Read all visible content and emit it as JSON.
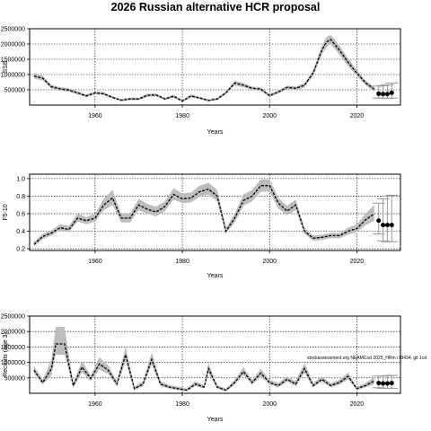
{
  "chart_data": {
    "title": "2026 Russian alternative HCR proposal",
    "annotation": "stockassessment.org NEAMCod 2025_HRm r19434, git 1cd",
    "panels": [
      {
        "type": "line",
        "ylabel": "SSB",
        "xlabel": "Years",
        "xlim": [
          1945,
          2030
        ],
        "ylim": [
          0,
          2500000
        ],
        "yticks": [
          500000,
          1000000,
          1500000,
          2000000,
          2500000
        ],
        "ytick_labels": [
          "500000",
          "1000000",
          "1500000",
          "2000000",
          "2500000"
        ],
        "xticks": [
          1960,
          1980,
          2000,
          2020
        ],
        "grid": true,
        "series": [
          {
            "x": [
              1946,
              1948,
              1950,
              1952,
              1954,
              1956,
              1958,
              1960,
              1962,
              1964,
              1966,
              1968,
              1970,
              1972,
              1974,
              1976,
              1978,
              1980,
              1982,
              1984,
              1986,
              1988,
              1990,
              1992,
              1994,
              1996,
              1998,
              2000,
              2002,
              2004,
              2006,
              2008,
              2010,
              2012,
              2013,
              2014,
              2016,
              2018,
              2020,
              2022,
              2024
            ],
            "y": [
              950000,
              880000,
              600000,
              530000,
              490000,
              400000,
              300000,
              400000,
              370000,
              250000,
              160000,
              200000,
              200000,
              320000,
              330000,
              200000,
              290000,
              130000,
              300000,
              230000,
              150000,
              200000,
              400000,
              720000,
              650000,
              550000,
              520000,
              310000,
              430000,
              580000,
              550000,
              650000,
              1050000,
              1800000,
              2060000,
              2150000,
              1800000,
              1400000,
              1050000,
              730000,
              520000
            ],
            "lower": [
              870000,
              800000,
              540000,
              470000,
              430000,
              350000,
              250000,
              350000,
              320000,
              210000,
              120000,
              160000,
              160000,
              270000,
              280000,
              160000,
              240000,
              100000,
              250000,
              190000,
              120000,
              160000,
              350000,
              640000,
              580000,
              490000,
              460000,
              270000,
              380000,
              520000,
              490000,
              580000,
              960000,
              1660000,
              1900000,
              2000000,
              1650000,
              1270000,
              950000,
              650000,
              440000
            ],
            "upper": [
              1050000,
              960000,
              660000,
              590000,
              550000,
              450000,
              350000,
              450000,
              420000,
              290000,
              200000,
              240000,
              240000,
              370000,
              380000,
              240000,
              340000,
              170000,
              350000,
              270000,
              190000,
              240000,
              450000,
              800000,
              720000,
              610000,
              580000,
              360000,
              480000,
              640000,
              610000,
              720000,
              1150000,
              1950000,
              2220000,
              2300000,
              1950000,
              1530000,
              1150000,
              810000,
              600000
            ]
          }
        ],
        "projection": {
          "x": [
            2025,
            2026,
            2027,
            2028
          ],
          "y": [
            370000,
            360000,
            360000,
            400000
          ],
          "lower": [
            230000,
            220000,
            220000,
            230000
          ],
          "upper": [
            620000,
            640000,
            660000,
            720000
          ]
        }
      },
      {
        "type": "line",
        "ylabel": "F5-10",
        "xlabel": "Years",
        "xlim": [
          1945,
          2030
        ],
        "ylim": [
          0.18,
          1.05
        ],
        "yticks": [
          0.2,
          0.4,
          0.6,
          0.8,
          1.0
        ],
        "ytick_labels": [
          "0.2",
          "0.4",
          "0.6",
          "0.8",
          "1.0"
        ],
        "xticks": [
          1960,
          1980,
          2000,
          2020
        ],
        "grid": true,
        "series": [
          {
            "x": [
              1946,
              1948,
              1950,
              1952,
              1954,
              1956,
              1958,
              1960,
              1962,
              1964,
              1966,
              1968,
              1970,
              1972,
              1974,
              1976,
              1978,
              1980,
              1982,
              1984,
              1986,
              1988,
              1990,
              1992,
              1994,
              1996,
              1998,
              2000,
              2002,
              2004,
              2006,
              2008,
              2010,
              2012,
              2014,
              2016,
              2018,
              2020,
              2022,
              2024
            ],
            "y": [
              0.25,
              0.34,
              0.38,
              0.44,
              0.42,
              0.55,
              0.52,
              0.55,
              0.7,
              0.78,
              0.55,
              0.55,
              0.7,
              0.65,
              0.62,
              0.68,
              0.82,
              0.77,
              0.78,
              0.85,
              0.88,
              0.8,
              0.4,
              0.55,
              0.75,
              0.8,
              0.92,
              0.92,
              0.72,
              0.63,
              0.7,
              0.4,
              0.32,
              0.33,
              0.35,
              0.35,
              0.4,
              0.43,
              0.53,
              0.6
            ],
            "lower": [
              0.23,
              0.31,
              0.35,
              0.41,
              0.39,
              0.51,
              0.48,
              0.51,
              0.64,
              0.7,
              0.5,
              0.5,
              0.64,
              0.6,
              0.57,
              0.63,
              0.76,
              0.72,
              0.73,
              0.79,
              0.82,
              0.74,
              0.37,
              0.5,
              0.69,
              0.74,
              0.85,
              0.85,
              0.66,
              0.58,
              0.64,
              0.37,
              0.29,
              0.3,
              0.32,
              0.32,
              0.36,
              0.39,
              0.47,
              0.52
            ],
            "upper": [
              0.28,
              0.37,
              0.41,
              0.48,
              0.46,
              0.6,
              0.56,
              0.6,
              0.77,
              0.87,
              0.6,
              0.6,
              0.77,
              0.71,
              0.68,
              0.74,
              0.89,
              0.83,
              0.84,
              0.92,
              0.95,
              0.87,
              0.44,
              0.6,
              0.82,
              0.87,
              0.99,
              0.99,
              0.78,
              0.69,
              0.76,
              0.44,
              0.35,
              0.36,
              0.38,
              0.38,
              0.44,
              0.48,
              0.6,
              0.7
            ]
          }
        ],
        "projection": {
          "x": [
            2025,
            2026,
            2027,
            2028
          ],
          "y": [
            0.52,
            0.47,
            0.47,
            0.47
          ],
          "lower": [
            0.37,
            0.29,
            0.28,
            0.28
          ],
          "upper": [
            0.72,
            0.77,
            0.8,
            0.81
          ]
        }
      },
      {
        "type": "line",
        "ylabel": "Recruits (age 3)",
        "xlabel": "Years",
        "xlim": [
          1945,
          2030
        ],
        "ylim": [
          0,
          2500000
        ],
        "yticks": [
          500000,
          1000000,
          1500000,
          2000000,
          2500000
        ],
        "ytick_labels": [
          "500000",
          "1000000",
          "1500000",
          "2000000",
          "2500000"
        ],
        "xticks": [
          1960,
          1980,
          2000,
          2020
        ],
        "grid": true,
        "series": [
          {
            "x": [
              1946,
              1948,
              1950,
              1951,
              1953,
              1955,
              1957,
              1959,
              1961,
              1963,
              1965,
              1967,
              1969,
              1971,
              1973,
              1975,
              1977,
              1979,
              1981,
              1983,
              1985,
              1986,
              1988,
              1990,
              1992,
              1994,
              1996,
              1998,
              2000,
              2002,
              2004,
              2006,
              2008,
              2010,
              2012,
              2014,
              2016,
              2018,
              2020,
              2022,
              2024
            ],
            "y": [
              750000,
              350000,
              800000,
              1600000,
              1600000,
              250000,
              850000,
              480000,
              950000,
              750000,
              300000,
              1250000,
              150000,
              300000,
              1100000,
              300000,
              200000,
              150000,
              100000,
              300000,
              200000,
              800000,
              200000,
              100000,
              350000,
              700000,
              350000,
              650000,
              350000,
              250000,
              450000,
              300000,
              800000,
              250000,
              450000,
              250000,
              350000,
              550000,
              150000,
              250000,
              400000
            ],
            "lower": [
              640000,
              280000,
              580000,
              1250000,
              1250000,
              180000,
              680000,
              390000,
              770000,
              620000,
              220000,
              1030000,
              100000,
              230000,
              920000,
              230000,
              150000,
              100000,
              70000,
              230000,
              150000,
              660000,
              150000,
              70000,
              280000,
              590000,
              280000,
              540000,
              280000,
              190000,
              370000,
              230000,
              660000,
              190000,
              370000,
              190000,
              280000,
              450000,
              110000,
              190000,
              300000
            ],
            "upper": [
              880000,
              440000,
              1100000,
              2150000,
              2150000,
              330000,
              1050000,
              580000,
              1170000,
              900000,
              390000,
              1500000,
              220000,
              390000,
              1320000,
              390000,
              270000,
              220000,
              150000,
              390000,
              270000,
              980000,
              270000,
              150000,
              440000,
              840000,
              440000,
              790000,
              440000,
              330000,
              550000,
              390000,
              980000,
              330000,
              550000,
              330000,
              440000,
              670000,
              210000,
              330000,
              520000
            ]
          }
        ],
        "projection": {
          "x": [
            2025,
            2026,
            2027,
            2028
          ],
          "y": [
            330000,
            320000,
            320000,
            330000
          ],
          "lower": [
            180000,
            160000,
            160000,
            160000
          ],
          "upper": [
            560000,
            560000,
            570000,
            580000
          ]
        }
      }
    ]
  }
}
